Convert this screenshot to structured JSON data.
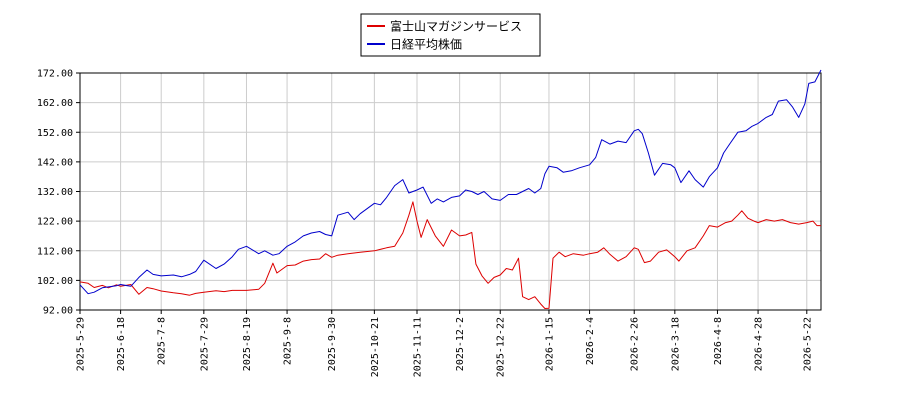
{
  "chart_data": {
    "type": "line",
    "title": "",
    "xlabel": "",
    "ylabel": "",
    "ylim": [
      92.0,
      172.0
    ],
    "y_ticks": [
      "92.00",
      "102.00",
      "112.00",
      "122.00",
      "132.00",
      "142.00",
      "152.00",
      "162.00",
      "172.00"
    ],
    "x_range": [
      "2025-05-29",
      "2026-05-29"
    ],
    "x_ticks": [
      "2025-5-29",
      "2025-6-18",
      "2025-7-8",
      "2025-7-29",
      "2025-8-19",
      "2025-9-8",
      "2025-9-30",
      "2025-10-21",
      "2025-11-11",
      "2025-12-2",
      "2025-12-22",
      "2026-1-15",
      "2026-2-4",
      "2026-2-26",
      "2026-3-18",
      "2026-4-8",
      "2026-4-28",
      "2026-5-22"
    ],
    "grid": true,
    "legend_position": "top-center",
    "series": [
      {
        "name": "富士山マガジンサービス",
        "color": "#dd0000",
        "points": [
          [
            "2025-05-29",
            101.5
          ],
          [
            "2025-06-02",
            101.0
          ],
          [
            "2025-06-05",
            99.6
          ],
          [
            "2025-06-09",
            100.3
          ],
          [
            "2025-06-12",
            99.5
          ],
          [
            "2025-06-16",
            100.5
          ],
          [
            "2025-06-18",
            100.0
          ],
          [
            "2025-06-23",
            100.6
          ],
          [
            "2025-06-27",
            97.3
          ],
          [
            "2025-07-01",
            99.6
          ],
          [
            "2025-07-04",
            99.2
          ],
          [
            "2025-07-08",
            98.4
          ],
          [
            "2025-07-14",
            97.8
          ],
          [
            "2025-07-18",
            97.5
          ],
          [
            "2025-07-22",
            97.0
          ],
          [
            "2025-07-25",
            97.6
          ],
          [
            "2025-07-29",
            98.0
          ],
          [
            "2025-08-04",
            98.5
          ],
          [
            "2025-08-08",
            98.2
          ],
          [
            "2025-08-12",
            98.6
          ],
          [
            "2025-08-19",
            98.6
          ],
          [
            "2025-08-25",
            99.0
          ],
          [
            "2025-08-28",
            101.0
          ],
          [
            "2025-09-01",
            107.8
          ],
          [
            "2025-09-03",
            104.5
          ],
          [
            "2025-09-08",
            107.0
          ],
          [
            "2025-09-12",
            107.2
          ],
          [
            "2025-09-16",
            108.5
          ],
          [
            "2025-09-20",
            109.0
          ],
          [
            "2025-09-24",
            109.2
          ],
          [
            "2025-09-27",
            111.0
          ],
          [
            "2025-09-30",
            109.8
          ],
          [
            "2025-10-03",
            110.5
          ],
          [
            "2025-10-08",
            111.0
          ],
          [
            "2025-10-14",
            111.5
          ],
          [
            "2025-10-21",
            112.0
          ],
          [
            "2025-10-27",
            113.0
          ],
          [
            "2025-10-31",
            113.5
          ],
          [
            "2025-11-04",
            118.0
          ],
          [
            "2025-11-07",
            124.0
          ],
          [
            "2025-11-09",
            128.5
          ],
          [
            "2025-11-11",
            122.0
          ],
          [
            "2025-11-13",
            116.5
          ],
          [
            "2025-11-16",
            122.5
          ],
          [
            "2025-11-20",
            117.0
          ],
          [
            "2025-11-24",
            113.5
          ],
          [
            "2025-11-28",
            119.0
          ],
          [
            "2025-12-02",
            117.0
          ],
          [
            "2025-12-05",
            117.3
          ],
          [
            "2025-12-08",
            118.2
          ],
          [
            "2025-12-10",
            107.5
          ],
          [
            "2025-12-13",
            103.5
          ],
          [
            "2025-12-16",
            101.0
          ],
          [
            "2025-12-19",
            103.0
          ],
          [
            "2025-12-22",
            103.8
          ],
          [
            "2025-12-25",
            106.0
          ],
          [
            "2025-12-28",
            105.5
          ],
          [
            "2025-12-31",
            109.5
          ],
          [
            "2026-01-02",
            96.5
          ],
          [
            "2026-01-05",
            95.5
          ],
          [
            "2026-01-08",
            96.5
          ],
          [
            "2026-01-11",
            94.0
          ],
          [
            "2026-01-13",
            92.5
          ],
          [
            "2026-01-15",
            92.6
          ],
          [
            "2026-01-17",
            109.5
          ],
          [
            "2026-01-20",
            111.5
          ],
          [
            "2026-01-23",
            110.0
          ],
          [
            "2026-01-27",
            111.0
          ],
          [
            "2026-02-01",
            110.5
          ],
          [
            "2026-02-04",
            111.0
          ],
          [
            "2026-02-08",
            111.5
          ],
          [
            "2026-02-11",
            113.0
          ],
          [
            "2026-02-14",
            110.8
          ],
          [
            "2026-02-18",
            108.5
          ],
          [
            "2026-02-22",
            110.0
          ],
          [
            "2026-02-26",
            113.0
          ],
          [
            "2026-02-28",
            112.5
          ],
          [
            "2026-03-03",
            108.0
          ],
          [
            "2026-03-06",
            108.5
          ],
          [
            "2026-03-10",
            111.5
          ],
          [
            "2026-03-14",
            112.3
          ],
          [
            "2026-03-18",
            110.0
          ],
          [
            "2026-03-20",
            108.5
          ],
          [
            "2026-03-24",
            112.0
          ],
          [
            "2026-03-28",
            113.0
          ],
          [
            "2026-04-01",
            117.0
          ],
          [
            "2026-04-04",
            120.5
          ],
          [
            "2026-04-08",
            120.0
          ],
          [
            "2026-04-12",
            121.5
          ],
          [
            "2026-04-15",
            122.0
          ],
          [
            "2026-04-18",
            124.0
          ],
          [
            "2026-04-20",
            125.5
          ],
          [
            "2026-04-23",
            123.0
          ],
          [
            "2026-04-26",
            122.0
          ],
          [
            "2026-04-28",
            121.5
          ],
          [
            "2026-05-02",
            122.5
          ],
          [
            "2026-05-06",
            122.0
          ],
          [
            "2026-05-10",
            122.5
          ],
          [
            "2026-05-14",
            121.5
          ],
          [
            "2026-05-18",
            121.0
          ],
          [
            "2026-05-22",
            121.5
          ],
          [
            "2026-05-25",
            122.0
          ],
          [
            "2026-05-27",
            120.5
          ],
          [
            "2026-05-29",
            120.5
          ]
        ]
      },
      {
        "name": "日経平均株価",
        "color": "#0000cc",
        "points": [
          [
            "2025-05-29",
            100.5
          ],
          [
            "2025-06-02",
            97.5
          ],
          [
            "2025-06-05",
            98.0
          ],
          [
            "2025-06-09",
            99.5
          ],
          [
            "2025-06-12",
            99.8
          ],
          [
            "2025-06-16",
            100.2
          ],
          [
            "2025-06-18",
            100.6
          ],
          [
            "2025-06-23",
            100.0
          ],
          [
            "2025-06-27",
            103.0
          ],
          [
            "2025-07-01",
            105.5
          ],
          [
            "2025-07-04",
            104.0
          ],
          [
            "2025-07-08",
            103.5
          ],
          [
            "2025-07-14",
            103.8
          ],
          [
            "2025-07-18",
            103.2
          ],
          [
            "2025-07-22",
            104.0
          ],
          [
            "2025-07-25",
            105.0
          ],
          [
            "2025-07-29",
            108.8
          ],
          [
            "2025-08-04",
            106.0
          ],
          [
            "2025-08-08",
            107.5
          ],
          [
            "2025-08-12",
            110.0
          ],
          [
            "2025-08-15",
            112.5
          ],
          [
            "2025-08-19",
            113.5
          ],
          [
            "2025-08-25",
            111.0
          ],
          [
            "2025-08-28",
            112.0
          ],
          [
            "2025-09-01",
            110.5
          ],
          [
            "2025-09-04",
            111.0
          ],
          [
            "2025-09-08",
            113.5
          ],
          [
            "2025-09-12",
            115.0
          ],
          [
            "2025-09-16",
            117.0
          ],
          [
            "2025-09-20",
            118.0
          ],
          [
            "2025-09-24",
            118.5
          ],
          [
            "2025-09-27",
            117.5
          ],
          [
            "2025-09-30",
            117.0
          ],
          [
            "2025-10-03",
            124.0
          ],
          [
            "2025-10-08",
            125.0
          ],
          [
            "2025-10-11",
            122.5
          ],
          [
            "2025-10-14",
            124.5
          ],
          [
            "2025-10-17",
            126.0
          ],
          [
            "2025-10-21",
            128.0
          ],
          [
            "2025-10-24",
            127.5
          ],
          [
            "2025-10-27",
            130.0
          ],
          [
            "2025-10-31",
            134.0
          ],
          [
            "2025-11-04",
            136.0
          ],
          [
            "2025-11-07",
            131.5
          ],
          [
            "2025-11-11",
            132.5
          ],
          [
            "2025-11-14",
            133.5
          ],
          [
            "2025-11-18",
            128.0
          ],
          [
            "2025-11-21",
            129.5
          ],
          [
            "2025-11-24",
            128.5
          ],
          [
            "2025-11-28",
            130.0
          ],
          [
            "2025-12-02",
            130.5
          ],
          [
            "2025-12-05",
            132.5
          ],
          [
            "2025-12-08",
            132.0
          ],
          [
            "2025-12-11",
            131.0
          ],
          [
            "2025-12-14",
            132.0
          ],
          [
            "2025-12-18",
            129.5
          ],
          [
            "2025-12-22",
            129.0
          ],
          [
            "2025-12-26",
            131.0
          ],
          [
            "2025-12-30",
            131.0
          ],
          [
            "2026-01-05",
            133.0
          ],
          [
            "2026-01-08",
            131.5
          ],
          [
            "2026-01-11",
            133.0
          ],
          [
            "2026-01-13",
            138.0
          ],
          [
            "2026-01-15",
            140.5
          ],
          [
            "2026-01-19",
            140.0
          ],
          [
            "2026-01-22",
            138.5
          ],
          [
            "2026-01-26",
            139.0
          ],
          [
            "2026-01-30",
            140.0
          ],
          [
            "2026-02-04",
            141.0
          ],
          [
            "2026-02-07",
            143.5
          ],
          [
            "2026-02-10",
            149.5
          ],
          [
            "2026-02-14",
            148.0
          ],
          [
            "2026-02-18",
            149.0
          ],
          [
            "2026-02-22",
            148.5
          ],
          [
            "2026-02-26",
            152.5
          ],
          [
            "2026-02-28",
            153.0
          ],
          [
            "2026-03-02",
            151.5
          ],
          [
            "2026-03-05",
            145.0
          ],
          [
            "2026-03-08",
            137.5
          ],
          [
            "2026-03-12",
            141.5
          ],
          [
            "2026-03-16",
            141.0
          ],
          [
            "2026-03-18",
            140.0
          ],
          [
            "2026-03-21",
            135.0
          ],
          [
            "2026-03-25",
            139.0
          ],
          [
            "2026-03-28",
            136.0
          ],
          [
            "2026-04-01",
            133.5
          ],
          [
            "2026-04-04",
            137.0
          ],
          [
            "2026-04-08",
            140.0
          ],
          [
            "2026-04-11",
            145.0
          ],
          [
            "2026-04-14",
            148.0
          ],
          [
            "2026-04-18",
            152.0
          ],
          [
            "2026-04-22",
            152.5
          ],
          [
            "2026-04-25",
            154.0
          ],
          [
            "2026-04-28",
            155.0
          ],
          [
            "2026-05-02",
            157.0
          ],
          [
            "2026-05-05",
            158.0
          ],
          [
            "2026-05-08",
            162.5
          ],
          [
            "2026-05-12",
            163.0
          ],
          [
            "2026-05-15",
            160.5
          ],
          [
            "2026-05-18",
            157.0
          ],
          [
            "2026-05-21",
            161.5
          ],
          [
            "2026-05-23",
            168.5
          ],
          [
            "2026-05-26",
            169.0
          ],
          [
            "2026-05-29",
            173.0
          ]
        ]
      }
    ]
  }
}
